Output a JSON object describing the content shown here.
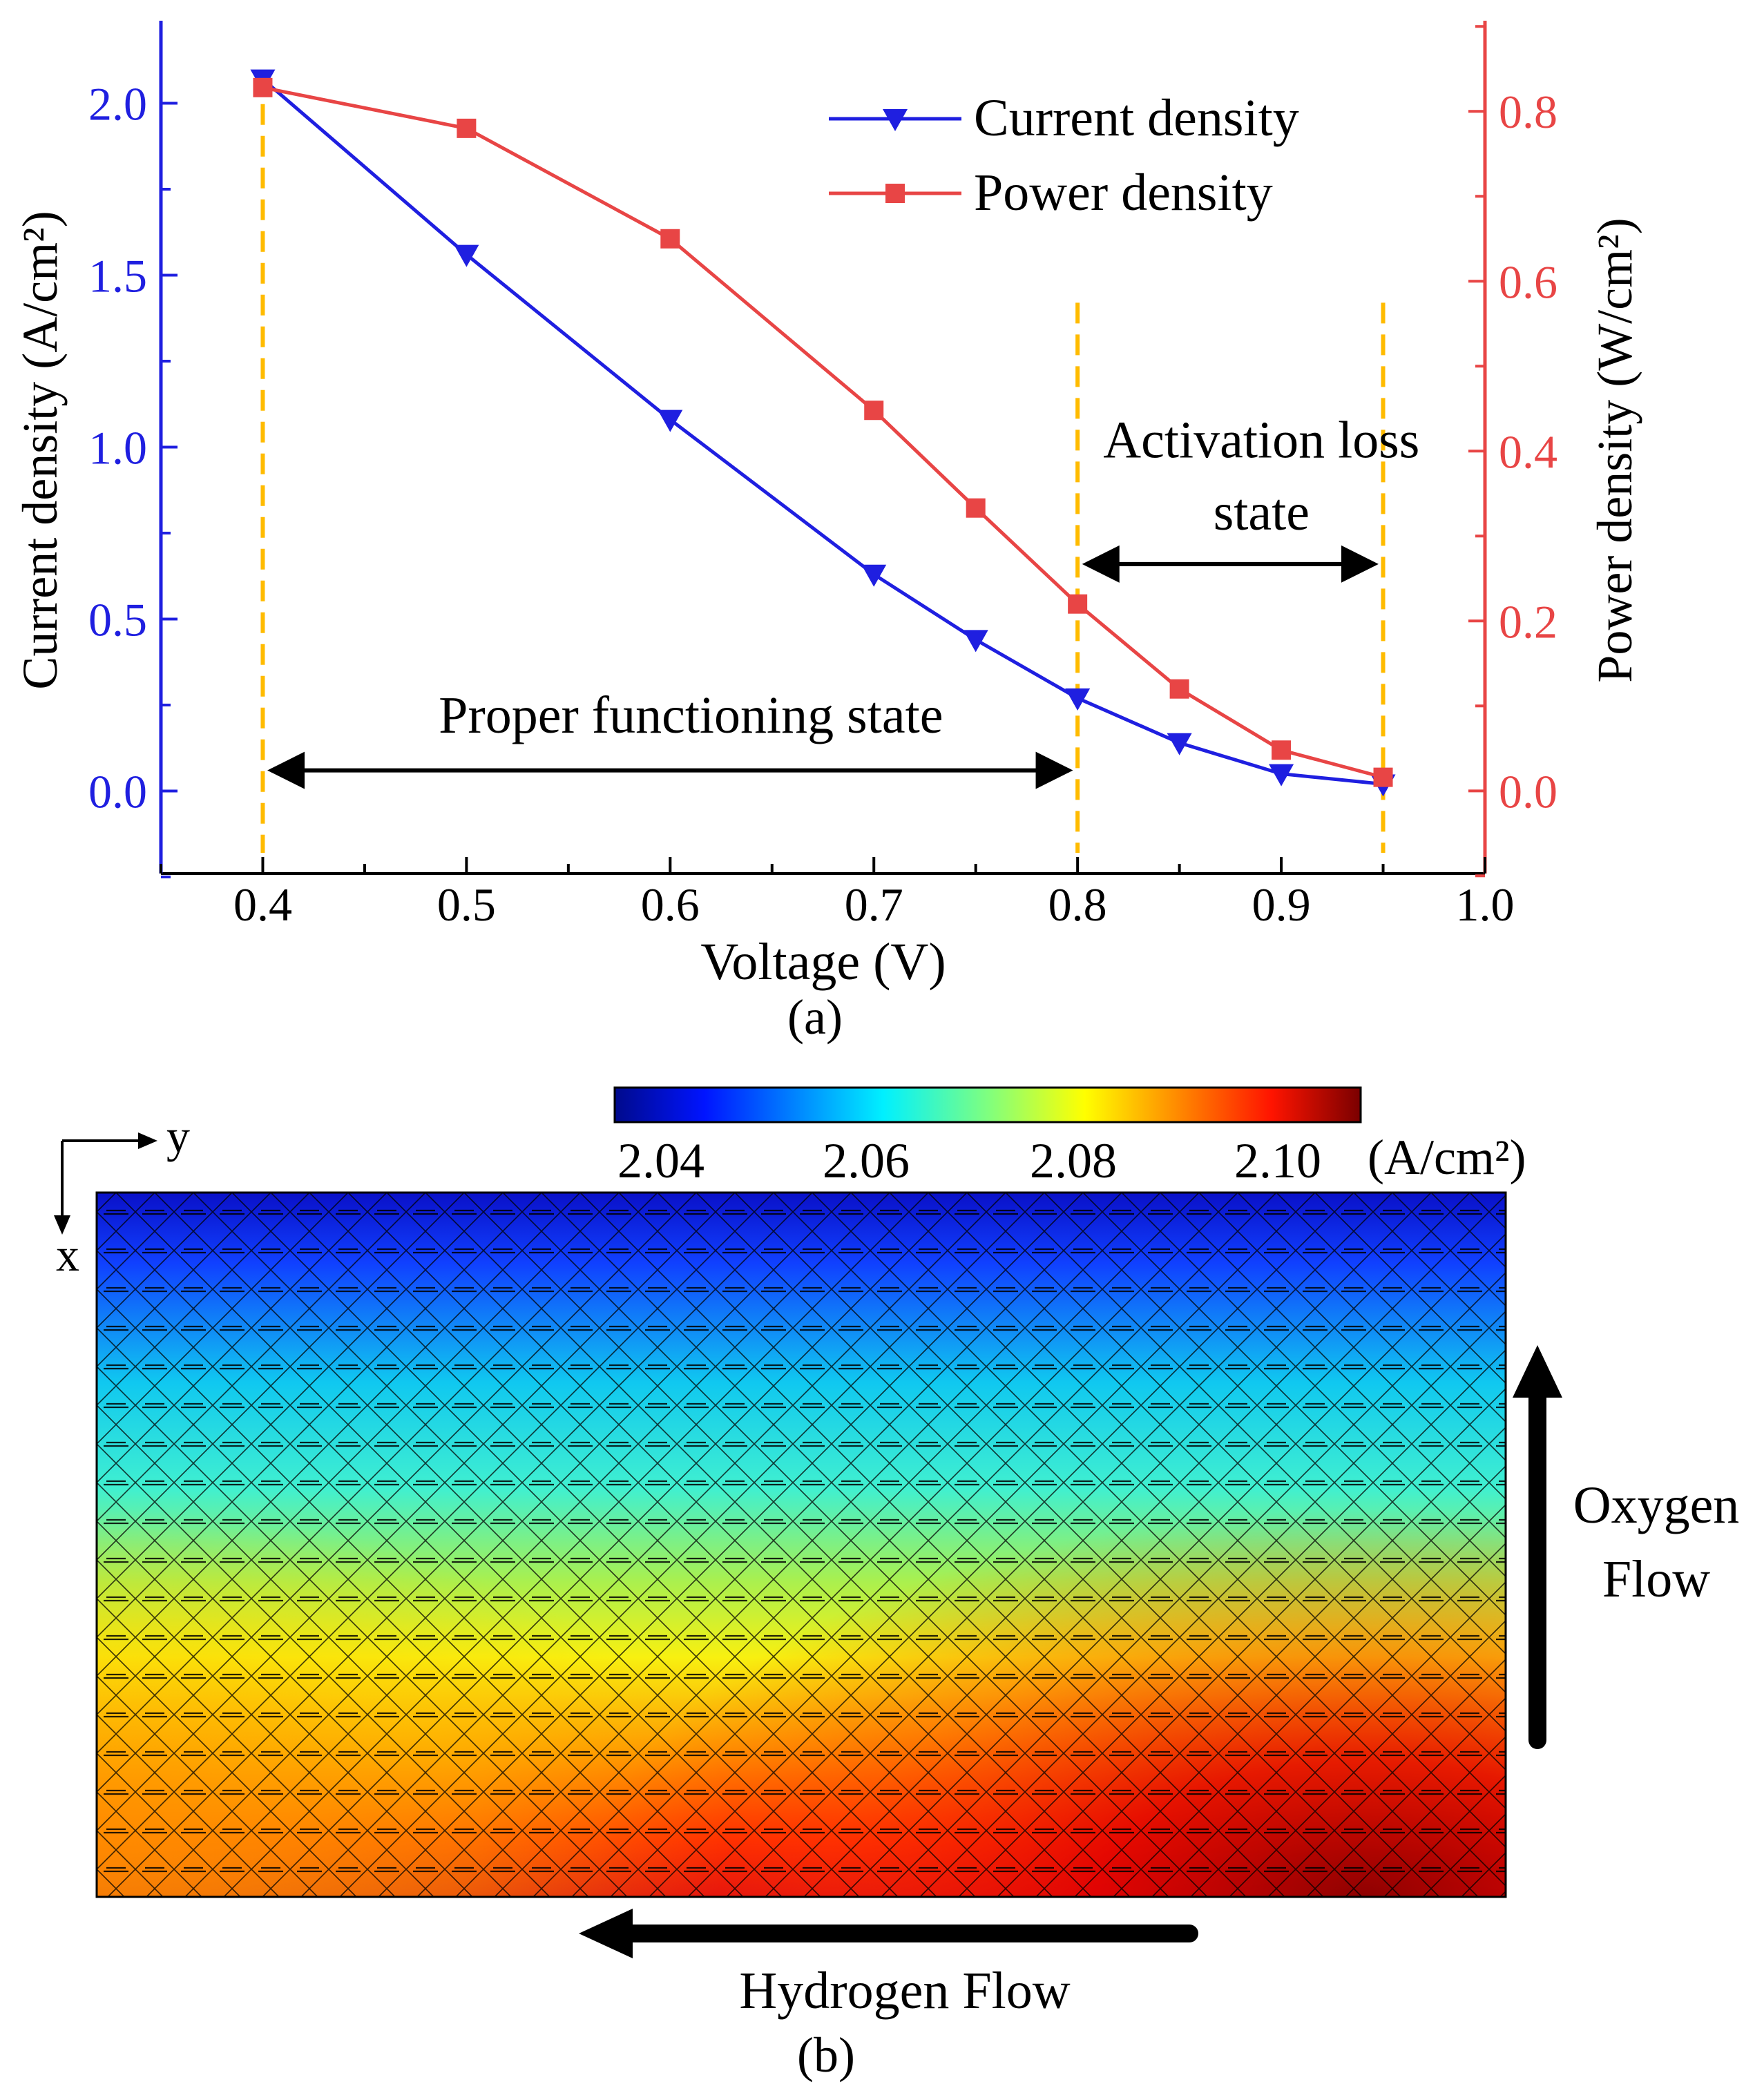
{
  "chart_data": [
    {
      "type": "line",
      "panel_label": "(a)",
      "xlabel": "Voltage (V)",
      "ylabel_left": "Current density (A/cm²)",
      "ylabel_right": "Power density (W/cm²)",
      "xlim": [
        0.35,
        1.0
      ],
      "ylim_left": [
        -0.24,
        2.24
      ],
      "ylim_right": [
        -0.0973,
        0.9067
      ],
      "x_ticks": [
        "0.4",
        "0.5",
        "0.6",
        "0.7",
        "0.8",
        "0.9",
        "1.0"
      ],
      "y_left_ticks": [
        "0.0",
        "0.5",
        "1.0",
        "1.5",
        "2.0"
      ],
      "y_right_ticks": [
        "0.0",
        "0.2",
        "0.4",
        "0.6",
        "0.8"
      ],
      "series": [
        {
          "name": "Current density",
          "axis": "left",
          "color": "#1f1fe0",
          "marker": "triangle-down",
          "x": [
            0.4,
            0.5,
            0.6,
            0.7,
            0.75,
            0.8,
            0.85,
            0.9,
            0.95
          ],
          "values": [
            2.07,
            1.56,
            1.08,
            0.63,
            0.44,
            0.27,
            0.14,
            0.05,
            0.02
          ]
        },
        {
          "name": "Power density",
          "axis": "right",
          "color": "#e84545",
          "marker": "square",
          "x": [
            0.4,
            0.5,
            0.6,
            0.7,
            0.75,
            0.8,
            0.85,
            0.9,
            0.95
          ],
          "values": [
            0.828,
            0.78,
            0.65,
            0.448,
            0.333,
            0.22,
            0.12,
            0.048,
            0.016
          ]
        }
      ],
      "reference_lines": {
        "color": "#ffbb00",
        "x": [
          0.4,
          0.8,
          0.95
        ]
      },
      "annotations": {
        "proper": {
          "text": "Proper functioning state",
          "from": 0.4,
          "to": 0.8
        },
        "activation": {
          "line1": "Activation loss",
          "line2": "state",
          "from": 0.8,
          "to": 0.95
        }
      },
      "legend_position": "top-right"
    },
    {
      "type": "heatmap",
      "panel_label": "(b)",
      "colorbar_ticks": [
        "2.04",
        "2.06",
        "2.08",
        "2.10"
      ],
      "colorbar_unit": "(A/cm²)",
      "colorbar_range": [
        2.028,
        2.111
      ],
      "axis_x_label": "x",
      "axis_y_label": "y",
      "flow_labels": {
        "hydrogen": "Hydrogen Flow",
        "oxygen_line1": "Oxygen",
        "oxygen_line2": "Flow"
      }
    }
  ]
}
